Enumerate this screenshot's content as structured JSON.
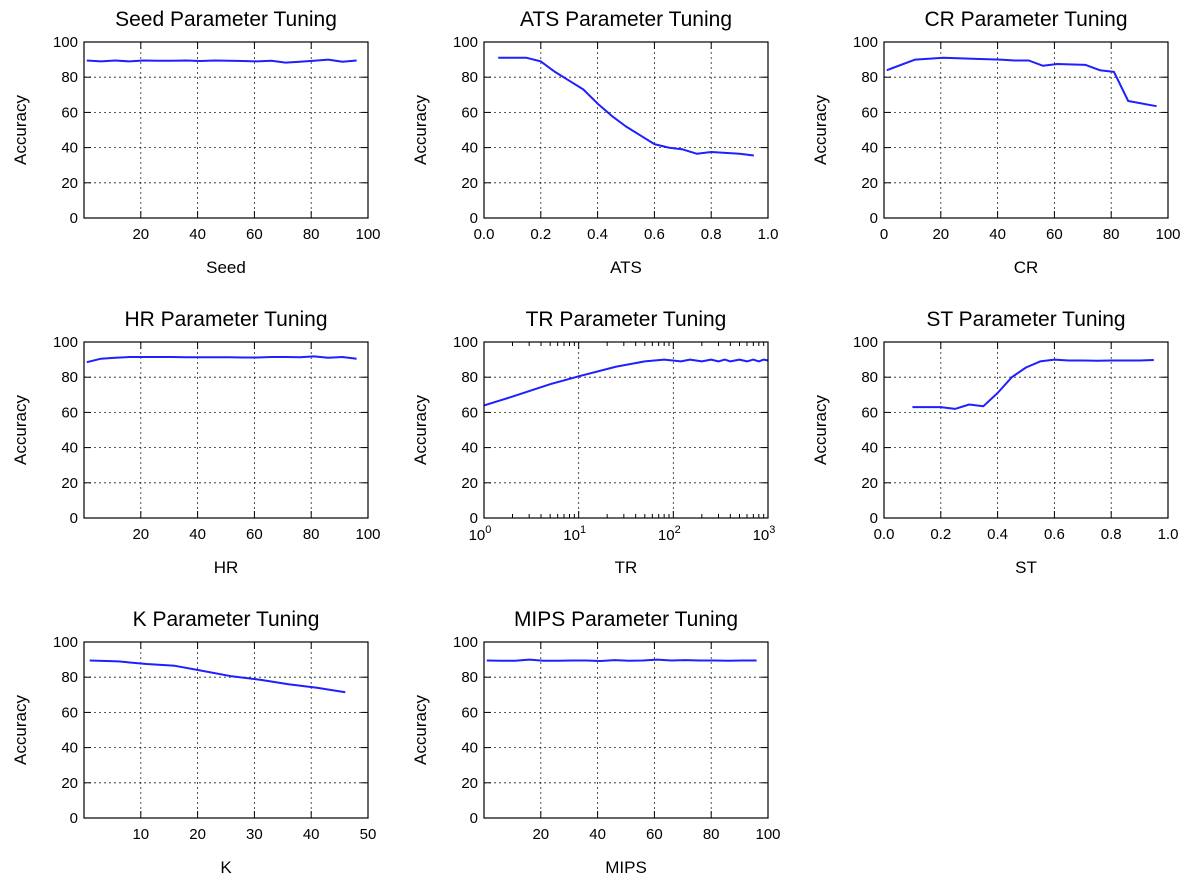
{
  "line_color": "#1f1fff",
  "chart_data": [
    {
      "type": "line",
      "title": "Seed Parameter Tuning",
      "xlabel": "Seed",
      "ylabel": "Accuracy",
      "xscale": "linear",
      "xlim": [
        0,
        100
      ],
      "ylim": [
        0,
        100
      ],
      "grid": true,
      "xticks": [
        20,
        40,
        60,
        80,
        100
      ],
      "xtick_labels": [
        "20",
        "40",
        "60",
        "80",
        "100"
      ],
      "yticks": [
        0,
        20,
        40,
        60,
        80,
        100
      ],
      "ytick_labels": [
        "0",
        "20",
        "40",
        "60",
        "80",
        "100"
      ],
      "series": [
        {
          "x": [
            1,
            6,
            11,
            16,
            21,
            26,
            31,
            36,
            41,
            46,
            51,
            56,
            61,
            66,
            71,
            76,
            81,
            86,
            91,
            96
          ],
          "y": [
            89.5,
            89,
            89.5,
            89,
            89.5,
            89.3,
            89.4,
            89.5,
            89.2,
            89.5,
            89.3,
            89.2,
            89,
            89.4,
            88.3,
            88.8,
            89.3,
            90,
            88.8,
            89.5
          ]
        }
      ]
    },
    {
      "type": "line",
      "title": "ATS Parameter Tuning",
      "xlabel": "ATS",
      "ylabel": "Accuracy",
      "xscale": "linear",
      "xlim": [
        0,
        1
      ],
      "ylim": [
        0,
        100
      ],
      "grid": true,
      "xticks": [
        0,
        0.2,
        0.4,
        0.6,
        0.8,
        1.0
      ],
      "xtick_labels": [
        "0.0",
        "0.2",
        "0.4",
        "0.6",
        "0.8",
        "1.0"
      ],
      "yticks": [
        0,
        20,
        40,
        60,
        80,
        100
      ],
      "ytick_labels": [
        "0",
        "20",
        "40",
        "60",
        "80",
        "100"
      ],
      "series": [
        {
          "x": [
            0.05,
            0.1,
            0.15,
            0.2,
            0.25,
            0.3,
            0.35,
            0.4,
            0.45,
            0.5,
            0.55,
            0.6,
            0.65,
            0.7,
            0.75,
            0.8,
            0.85,
            0.9,
            0.95
          ],
          "y": [
            91,
            91,
            91,
            89,
            83,
            78,
            73,
            65,
            58,
            52,
            47,
            42,
            40,
            39,
            36.5,
            37.5,
            37,
            36.5,
            35.5
          ]
        }
      ]
    },
    {
      "type": "line",
      "title": "CR Parameter Tuning",
      "xlabel": "CR",
      "ylabel": "Accuracy",
      "xscale": "linear",
      "xlim": [
        0,
        100
      ],
      "ylim": [
        0,
        100
      ],
      "grid": true,
      "xticks": [
        0,
        20,
        40,
        60,
        80,
        100
      ],
      "xtick_labels": [
        "0",
        "20",
        "40",
        "60",
        "80",
        "100"
      ],
      "yticks": [
        0,
        20,
        40,
        60,
        80,
        100
      ],
      "ytick_labels": [
        "0",
        "20",
        "40",
        "60",
        "80",
        "100"
      ],
      "series": [
        {
          "x": [
            1,
            11,
            21,
            31,
            41,
            46,
            51,
            56,
            61,
            71,
            76,
            81,
            86,
            96
          ],
          "y": [
            84,
            90,
            91,
            90.5,
            90,
            89.5,
            89.5,
            86.5,
            87.5,
            87,
            84,
            83,
            66.5,
            63.5
          ]
        }
      ]
    },
    {
      "type": "line",
      "title": "HR Parameter Tuning",
      "xlabel": "HR",
      "ylabel": "Accuracy",
      "xscale": "linear",
      "xlim": [
        0,
        100
      ],
      "ylim": [
        0,
        100
      ],
      "grid": true,
      "xticks": [
        20,
        40,
        60,
        80,
        100
      ],
      "xtick_labels": [
        "20",
        "40",
        "60",
        "80",
        "100"
      ],
      "yticks": [
        0,
        20,
        40,
        60,
        80,
        100
      ],
      "ytick_labels": [
        "0",
        "20",
        "40",
        "60",
        "80",
        "100"
      ],
      "series": [
        {
          "x": [
            1,
            6,
            11,
            16,
            21,
            26,
            31,
            36,
            41,
            46,
            51,
            56,
            61,
            66,
            71,
            76,
            81,
            86,
            91,
            96
          ],
          "y": [
            88.5,
            90.5,
            91,
            91.5,
            91.5,
            91.5,
            91.5,
            91.3,
            91.3,
            91.3,
            91.3,
            91.2,
            91.2,
            91.5,
            91.5,
            91.3,
            91.8,
            91,
            91.5,
            90.5
          ]
        }
      ]
    },
    {
      "type": "line",
      "title": "TR Parameter Tuning",
      "xlabel": "TR",
      "ylabel": "Accuracy",
      "xscale": "log",
      "xlim": [
        1,
        1000
      ],
      "ylim": [
        0,
        100
      ],
      "grid": true,
      "xticks": [
        1,
        10,
        100,
        1000
      ],
      "xtick_labels": [
        "10",
        "10",
        "10",
        "10"
      ],
      "xtick_exponents": [
        "0",
        "1",
        "2",
        "3"
      ],
      "yticks": [
        0,
        20,
        40,
        60,
        80,
        100
      ],
      "ytick_labels": [
        "0",
        "20",
        "40",
        "60",
        "80",
        "100"
      ],
      "series": [
        {
          "x": [
            1,
            2,
            5,
            10,
            25,
            50,
            80,
            120,
            150,
            200,
            250,
            300,
            350,
            400,
            500,
            600,
            700,
            800,
            900,
            1000
          ],
          "y": [
            64,
            69,
            76,
            80.5,
            86,
            89,
            90,
            89,
            90,
            89,
            90,
            89,
            90,
            89,
            90,
            89,
            90,
            89,
            90,
            89.5
          ]
        }
      ]
    },
    {
      "type": "line",
      "title": "ST Parameter Tuning",
      "xlabel": "ST",
      "ylabel": "Accuracy",
      "xscale": "linear",
      "xlim": [
        0,
        1
      ],
      "ylim": [
        0,
        100
      ],
      "grid": true,
      "xticks": [
        0,
        0.2,
        0.4,
        0.6,
        0.8,
        1.0
      ],
      "xtick_labels": [
        "0.0",
        "0.2",
        "0.4",
        "0.6",
        "0.8",
        "1.0"
      ],
      "yticks": [
        0,
        20,
        40,
        60,
        80,
        100
      ],
      "ytick_labels": [
        "0",
        "20",
        "40",
        "60",
        "80",
        "100"
      ],
      "series": [
        {
          "x": [
            0.1,
            0.15,
            0.2,
            0.25,
            0.3,
            0.35,
            0.4,
            0.45,
            0.5,
            0.55,
            0.6,
            0.65,
            0.7,
            0.75,
            0.8,
            0.85,
            0.9,
            0.95
          ],
          "y": [
            63,
            63,
            63,
            62,
            64.5,
            63.5,
            71,
            80,
            85.5,
            89,
            90,
            89.5,
            89.5,
            89.3,
            89.5,
            89.5,
            89.5,
            89.8
          ]
        }
      ]
    },
    {
      "type": "line",
      "title": "K Parameter Tuning",
      "xlabel": "K",
      "ylabel": "Accuracy",
      "xscale": "linear",
      "xlim": [
        0,
        50
      ],
      "ylim": [
        0,
        100
      ],
      "grid": true,
      "xticks": [
        10,
        20,
        30,
        40,
        50
      ],
      "xtick_labels": [
        "10",
        "20",
        "30",
        "40",
        "50"
      ],
      "yticks": [
        0,
        20,
        40,
        60,
        80,
        100
      ],
      "ytick_labels": [
        "0",
        "20",
        "40",
        "60",
        "80",
        "100"
      ],
      "series": [
        {
          "x": [
            1,
            6,
            11,
            16,
            21,
            26,
            31,
            36,
            41,
            46
          ],
          "y": [
            89.5,
            89,
            87.5,
            86.5,
            83.5,
            80.5,
            78.5,
            76,
            74,
            71.5
          ]
        }
      ]
    },
    {
      "type": "line",
      "title": "MIPS Parameter Tuning",
      "xlabel": "MIPS",
      "ylabel": "Accuracy",
      "xscale": "linear",
      "xlim": [
        0,
        100
      ],
      "ylim": [
        0,
        100
      ],
      "grid": true,
      "xticks": [
        20,
        40,
        60,
        80,
        100
      ],
      "xtick_labels": [
        "20",
        "40",
        "60",
        "80",
        "100"
      ],
      "yticks": [
        0,
        20,
        40,
        60,
        80,
        100
      ],
      "ytick_labels": [
        "0",
        "20",
        "40",
        "60",
        "80",
        "100"
      ],
      "series": [
        {
          "x": [
            1,
            6,
            11,
            16,
            21,
            26,
            31,
            36,
            41,
            46,
            51,
            56,
            61,
            66,
            71,
            76,
            81,
            86,
            91,
            96
          ],
          "y": [
            89.5,
            89.3,
            89.3,
            90,
            89.3,
            89.3,
            89.5,
            89.5,
            89.2,
            89.7,
            89.3,
            89.5,
            90,
            89.5,
            89.7,
            89.5,
            89.5,
            89.3,
            89.5,
            89.5
          ]
        }
      ]
    }
  ]
}
